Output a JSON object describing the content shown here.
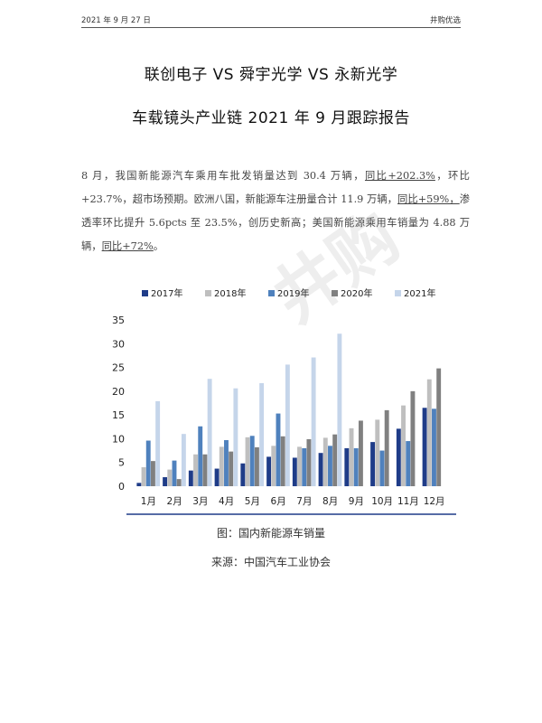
{
  "header": {
    "date": "2021 年 9 月 27 日",
    "brand": "井购优选"
  },
  "title": {
    "line1": "联创电子 VS 舜宇光学 VS 永新光学",
    "line2": "车载镜头产业链 2021 年 9 月跟踪报告"
  },
  "paragraph": {
    "p1": "8 月，我国新能源汽车乘用车批发销量达到 30.4 万辆，",
    "u1": "同比+202.3%",
    "p2": "，环比+23.7%，超市场预期。欧洲八国，新能源车注册量合计 11.9 万辆，",
    "u2": "同比+59%，",
    "p3": "渗透率环比提升 5.6pcts 至 23.5%，创历史新高；美国新能源乘用车销量为 4.88 万辆，",
    "u3": "同比+72%",
    "p4": "。"
  },
  "watermark": "井购",
  "chart_data": {
    "type": "bar",
    "categories": [
      "1月",
      "2月",
      "3月",
      "4月",
      "5月",
      "6月",
      "7月",
      "8月",
      "9月",
      "10月",
      "11月",
      "12月"
    ],
    "series": [
      {
        "name": "2017年",
        "color": "#1f3c88",
        "values": [
          0.7,
          1.9,
          3.3,
          3.7,
          4.8,
          6.2,
          6.0,
          7.0,
          8.0,
          9.3,
          12.1,
          16.5
        ]
      },
      {
        "name": "2018年",
        "color": "#bfbfbf",
        "values": [
          4.0,
          3.5,
          6.7,
          8.3,
          10.3,
          8.5,
          8.3,
          10.2,
          12.2,
          14.0,
          17.0,
          22.5
        ]
      },
      {
        "name": "2019年",
        "color": "#4f81bd",
        "values": [
          9.6,
          5.4,
          12.6,
          9.7,
          10.6,
          15.3,
          8.0,
          8.5,
          8.0,
          7.5,
          9.5,
          16.3
        ]
      },
      {
        "name": "2020年",
        "color": "#808080",
        "values": [
          5.3,
          1.5,
          6.7,
          7.3,
          8.2,
          10.5,
          9.9,
          10.9,
          13.8,
          16.0,
          20.0,
          24.8
        ]
      },
      {
        "name": "2021年",
        "color": "#c5d5ea",
        "values": [
          17.9,
          11.0,
          22.6,
          20.6,
          21.7,
          25.6,
          27.1,
          32.1,
          null,
          null,
          null,
          null
        ]
      }
    ],
    "ylim": [
      0,
      35
    ],
    "yticks": [
      0,
      5,
      10,
      15,
      20,
      25,
      30,
      35
    ],
    "legend": "top"
  },
  "caption": {
    "figure": "图：国内新能源车销量",
    "source": "来源：中国汽车工业协会"
  }
}
